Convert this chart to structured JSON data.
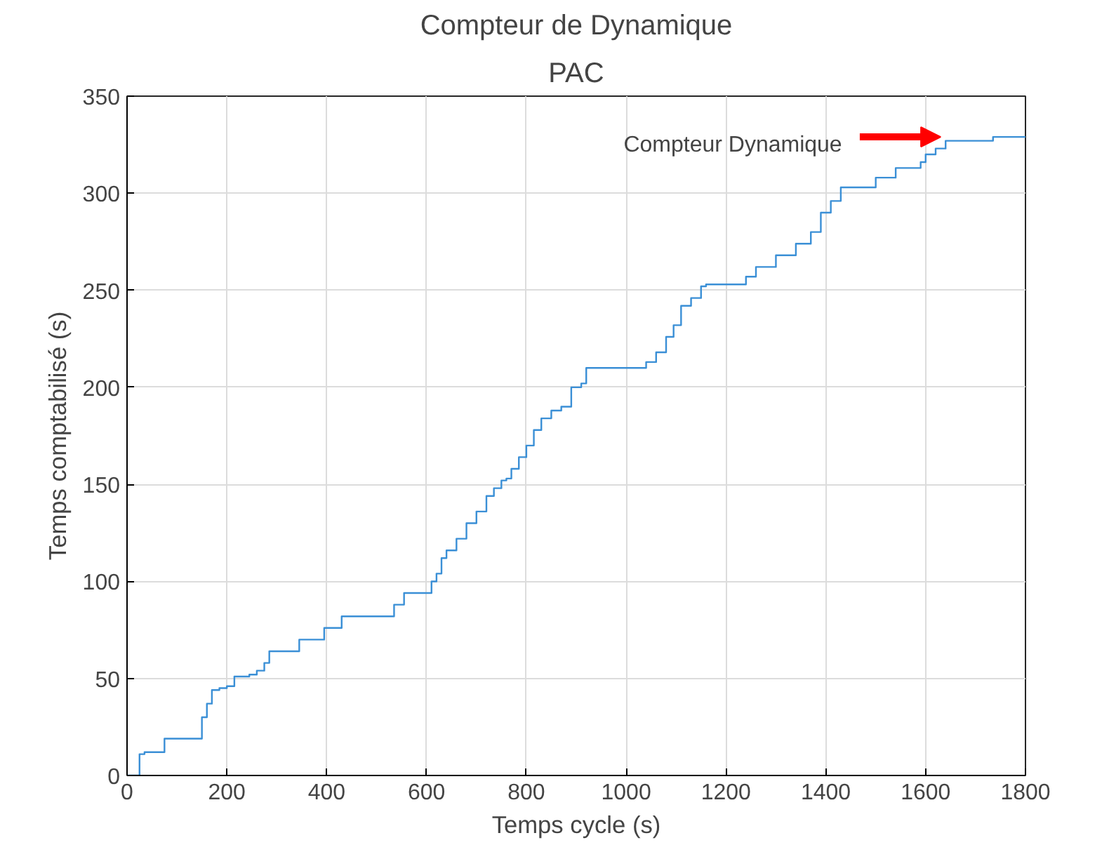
{
  "chart_data": {
    "type": "step",
    "title": "Compteur de Dynamique",
    "subtitle": "PAC",
    "xlabel": "Temps cycle (s)",
    "ylabel": "Temps comptabilisé (s)",
    "x": [
      0,
      15,
      25,
      35,
      65,
      75,
      140,
      150,
      160,
      170,
      185,
      200,
      215,
      245,
      260,
      275,
      285,
      340,
      345,
      390,
      395,
      420,
      430,
      530,
      535,
      550,
      555,
      600,
      610,
      620,
      630,
      640,
      660,
      680,
      700,
      720,
      735,
      750,
      760,
      770,
      785,
      800,
      815,
      830,
      850,
      870,
      890,
      910,
      920,
      1010,
      1040,
      1060,
      1080,
      1095,
      1110,
      1130,
      1150,
      1160,
      1220,
      1240,
      1260,
      1300,
      1340,
      1370,
      1390,
      1410,
      1430,
      1480,
      1500,
      1530,
      1540,
      1570,
      1590,
      1600,
      1620,
      1640,
      1730,
      1735,
      1800
    ],
    "series": [
      {
        "color": "#3a8fd6",
        "values": [
          0,
          0,
          11,
          12,
          12,
          19,
          19,
          30,
          37,
          44,
          45,
          46,
          51,
          52,
          54,
          58,
          64,
          64,
          70,
          70,
          76,
          76,
          82,
          82,
          88,
          88,
          94,
          94,
          100,
          104,
          112,
          116,
          122,
          130,
          136,
          144,
          148,
          152,
          153,
          158,
          164,
          170,
          178,
          184,
          188,
          190,
          200,
          202,
          210,
          210,
          213,
          218,
          226,
          232,
          242,
          246,
          252,
          253,
          253,
          257,
          262,
          268,
          274,
          280,
          290,
          296,
          303,
          303,
          308,
          308,
          313,
          313,
          316,
          320,
          323,
          327,
          327,
          329,
          329
        ]
      }
    ],
    "xlim": [
      0,
      1800
    ],
    "ylim": [
      0,
      350
    ],
    "xticks": [
      0,
      200,
      400,
      600,
      800,
      1000,
      1200,
      1400,
      1600,
      1800
    ],
    "yticks": [
      0,
      50,
      100,
      150,
      200,
      250,
      300,
      350
    ],
    "grid": true,
    "annotations": [
      {
        "text": "Compteur Dynamique",
        "x": 1630,
        "y": 329
      }
    ]
  }
}
